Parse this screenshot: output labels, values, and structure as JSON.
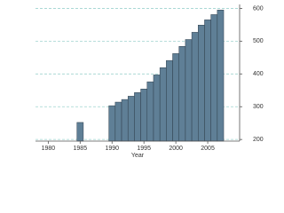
{
  "chart_data": {
    "type": "bar",
    "x_label": "Year",
    "x": [
      1985,
      1990,
      1991,
      1992,
      1993,
      1994,
      1995,
      1996,
      1997,
      1998,
      1999,
      2000,
      2001,
      2002,
      2003,
      2004,
      2005,
      2006,
      2007
    ],
    "values": [
      252,
      303,
      314,
      322,
      332,
      343,
      354,
      376,
      397,
      419,
      441,
      462,
      484,
      505,
      527,
      549,
      565,
      581,
      595
    ],
    "color": "#5f7f96",
    "xlim": [
      1978,
      2010
    ],
    "xticks": [
      1980,
      1985,
      1990,
      1995,
      2000,
      2005
    ],
    "ylim": [
      195,
      612
    ],
    "yticks": [
      200,
      300,
      400,
      500,
      600
    ],
    "grid": true
  }
}
